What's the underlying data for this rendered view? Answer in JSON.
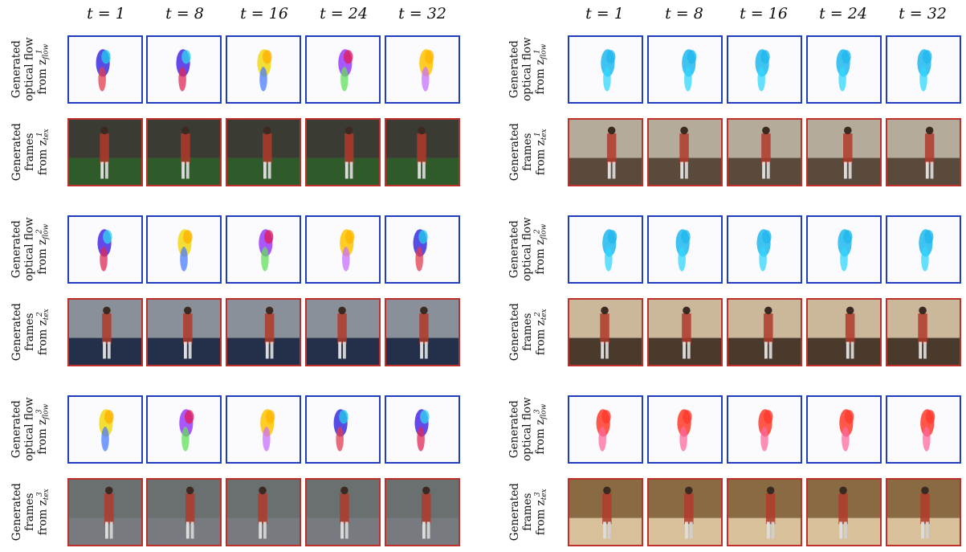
{
  "time_steps": [
    "t = 1",
    "t = 8",
    "t = 16",
    "t = 24",
    "t = 32"
  ],
  "row_labels": {
    "flow": {
      "line1": "Generated",
      "line2": "optical flow",
      "from": "from z",
      "var": "flow"
    },
    "frames": {
      "line1": "Generated",
      "line2": "frames",
      "from": "from z",
      "var": "tex"
    }
  },
  "groups": [
    {
      "panel": "left",
      "index": "1"
    },
    {
      "panel": "left",
      "index": "2"
    },
    {
      "panel": "left",
      "index": "3"
    },
    {
      "panel": "right",
      "index": "1"
    },
    {
      "panel": "right",
      "index": "2"
    },
    {
      "panel": "right",
      "index": "3"
    }
  ],
  "colors": {
    "flow_border": "#1f3fbf",
    "frame_border": "#c0302a"
  }
}
